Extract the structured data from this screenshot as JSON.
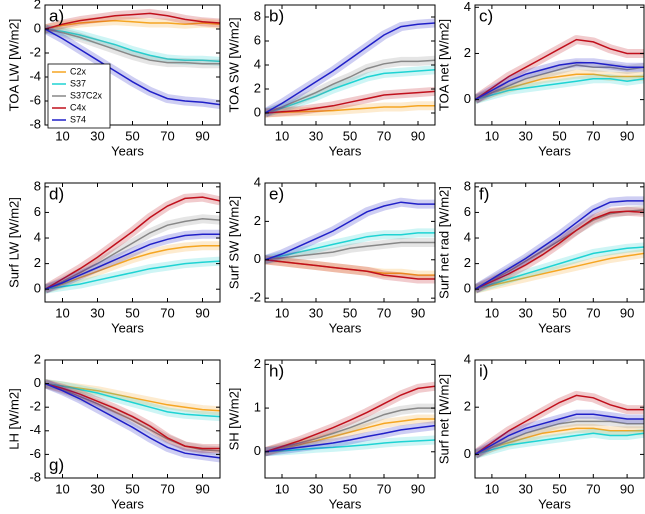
{
  "chart_data": [
    {
      "type": "line",
      "label": "a)",
      "label_position": "top-left",
      "ylabel": "TOA LW [W/m2]",
      "xlabel": "Years",
      "legend": "lower-left",
      "x": [
        0,
        10,
        20,
        30,
        40,
        50,
        60,
        70,
        80,
        90,
        100
      ],
      "xlim": [
        0,
        100
      ],
      "xticks": [
        10,
        30,
        50,
        70,
        90
      ],
      "ylim": [
        -8,
        2
      ],
      "yticks": [
        -8,
        -6,
        -4,
        -2,
        0,
        2
      ],
      "series": [
        {
          "name": "C2x",
          "color": "#f5a623",
          "values": [
            0,
            0.3,
            0.5,
            0.6,
            0.7,
            0.6,
            0.5,
            0.5,
            0.4,
            0.5,
            0.4
          ]
        },
        {
          "name": "S37",
          "color": "#1fd3d3",
          "values": [
            0,
            -0.2,
            -0.5,
            -0.9,
            -1.3,
            -1.8,
            -2.2,
            -2.5,
            -2.6,
            -2.6,
            -2.7
          ]
        },
        {
          "name": "S37C2x",
          "color": "#888888",
          "values": [
            0,
            -0.3,
            -0.7,
            -1.2,
            -1.7,
            -2.2,
            -2.6,
            -2.8,
            -2.8,
            -2.9,
            -2.9
          ]
        },
        {
          "name": "C4x",
          "color": "#c0101c",
          "values": [
            0,
            0.4,
            0.7,
            0.9,
            1.1,
            1.2,
            1.3,
            1.1,
            0.8,
            0.6,
            0.5
          ]
        },
        {
          "name": "S74",
          "color": "#2020c8",
          "values": [
            0,
            -0.8,
            -1.7,
            -2.6,
            -3.5,
            -4.4,
            -5.2,
            -5.8,
            -6.0,
            -6.1,
            -6.3
          ]
        }
      ]
    },
    {
      "type": "line",
      "label": "b)",
      "label_position": "top-left",
      "ylabel": "TOA SW [W/m2]",
      "xlabel": "Years",
      "x": [
        0,
        10,
        20,
        30,
        40,
        50,
        60,
        70,
        80,
        90,
        100
      ],
      "xlim": [
        0,
        100
      ],
      "xticks": [
        10,
        30,
        50,
        70,
        90
      ],
      "ylim": [
        -1,
        9
      ],
      "yticks": [
        0,
        2,
        4,
        6,
        8
      ],
      "series": [
        {
          "color": "#f5a623",
          "values": [
            0,
            0.05,
            0.1,
            0.15,
            0.2,
            0.3,
            0.4,
            0.5,
            0.5,
            0.6,
            0.6
          ]
        },
        {
          "color": "#1fd3d3",
          "values": [
            0,
            0.4,
            0.9,
            1.4,
            2.0,
            2.5,
            3.0,
            3.3,
            3.4,
            3.5,
            3.6
          ]
        },
        {
          "color": "#888888",
          "values": [
            0,
            0.5,
            1.1,
            1.7,
            2.4,
            3.0,
            3.7,
            4.1,
            4.3,
            4.3,
            4.4
          ]
        },
        {
          "color": "#c0101c",
          "values": [
            0,
            0.1,
            0.2,
            0.4,
            0.6,
            0.9,
            1.2,
            1.5,
            1.6,
            1.7,
            1.8
          ]
        },
        {
          "color": "#2020c8",
          "values": [
            0,
            0.8,
            1.7,
            2.6,
            3.5,
            4.5,
            5.5,
            6.5,
            7.2,
            7.4,
            7.5
          ]
        }
      ]
    },
    {
      "type": "line",
      "label": "c)",
      "label_position": "top-left",
      "ylabel": "TOA net [W/m2]",
      "xlabel": "Years",
      "x": [
        0,
        10,
        20,
        30,
        40,
        50,
        60,
        70,
        80,
        90,
        100
      ],
      "xlim": [
        0,
        100
      ],
      "xticks": [
        10,
        30,
        50,
        70,
        90
      ],
      "ylim": [
        -1.1,
        4.1
      ],
      "yticks": [
        0,
        2,
        4
      ],
      "series": [
        {
          "color": "#f5a623",
          "values": [
            0,
            0.3,
            0.5,
            0.7,
            0.9,
            1.0,
            1.1,
            1.1,
            1.0,
            1.0,
            1.0
          ]
        },
        {
          "color": "#1fd3d3",
          "values": [
            0,
            0.2,
            0.4,
            0.5,
            0.6,
            0.7,
            0.8,
            0.9,
            0.9,
            0.8,
            0.9
          ]
        },
        {
          "color": "#888888",
          "values": [
            0,
            0.3,
            0.6,
            0.9,
            1.1,
            1.3,
            1.5,
            1.4,
            1.4,
            1.3,
            1.4
          ]
        },
        {
          "color": "#c0101c",
          "values": [
            0,
            0.5,
            1.0,
            1.4,
            1.8,
            2.2,
            2.6,
            2.5,
            2.2,
            2.0,
            2.0
          ]
        },
        {
          "color": "#2020c8",
          "values": [
            0,
            0.4,
            0.8,
            1.1,
            1.3,
            1.5,
            1.6,
            1.6,
            1.5,
            1.4,
            1.4
          ]
        }
      ]
    },
    {
      "type": "line",
      "label": "d)",
      "label_position": "top-left",
      "ylabel": "Surf LW [W/m2]",
      "xlabel": "Years",
      "x": [
        0,
        10,
        20,
        30,
        40,
        50,
        60,
        70,
        80,
        90,
        100
      ],
      "xlim": [
        0,
        100
      ],
      "xticks": [
        10,
        30,
        50,
        70,
        90
      ],
      "ylim": [
        -1,
        8.3
      ],
      "yticks": [
        0,
        2,
        4,
        6,
        8
      ],
      "series": [
        {
          "color": "#f5a623",
          "values": [
            0,
            0.4,
            0.9,
            1.4,
            1.9,
            2.4,
            2.8,
            3.1,
            3.3,
            3.4,
            3.4
          ]
        },
        {
          "color": "#1fd3d3",
          "values": [
            0,
            0.2,
            0.4,
            0.7,
            1.0,
            1.3,
            1.6,
            1.8,
            2.0,
            2.1,
            2.2
          ]
        },
        {
          "color": "#888888",
          "values": [
            0,
            0.6,
            1.3,
            2.0,
            2.8,
            3.6,
            4.4,
            5.0,
            5.3,
            5.5,
            5.4
          ]
        },
        {
          "color": "#c0101c",
          "values": [
            0,
            0.8,
            1.6,
            2.5,
            3.5,
            4.5,
            5.6,
            6.5,
            7.1,
            7.2,
            6.9
          ]
        },
        {
          "color": "#2020c8",
          "values": [
            0,
            0.5,
            1.1,
            1.7,
            2.3,
            2.9,
            3.5,
            3.9,
            4.2,
            4.3,
            4.3
          ]
        }
      ]
    },
    {
      "type": "line",
      "label": "e)",
      "label_position": "top-left",
      "ylabel": "Surf SW [W/m2]",
      "xlabel": "Years",
      "x": [
        0,
        10,
        20,
        30,
        40,
        50,
        60,
        70,
        80,
        90,
        100
      ],
      "xlim": [
        0,
        100
      ],
      "xticks": [
        10,
        30,
        50,
        70,
        90
      ],
      "ylim": [
        -2.2,
        4
      ],
      "yticks": [
        -2,
        0,
        2,
        4
      ],
      "series": [
        {
          "color": "#f5a623",
          "values": [
            0,
            -0.1,
            -0.2,
            -0.3,
            -0.4,
            -0.5,
            -0.6,
            -0.7,
            -0.7,
            -0.8,
            -0.8
          ]
        },
        {
          "color": "#1fd3d3",
          "values": [
            0,
            0.2,
            0.4,
            0.6,
            0.8,
            1.0,
            1.2,
            1.3,
            1.3,
            1.4,
            1.4
          ]
        },
        {
          "color": "#888888",
          "values": [
            0,
            0.1,
            0.2,
            0.3,
            0.4,
            0.6,
            0.7,
            0.8,
            0.9,
            0.9,
            0.9
          ]
        },
        {
          "color": "#c0101c",
          "values": [
            0,
            -0.1,
            -0.2,
            -0.3,
            -0.4,
            -0.5,
            -0.6,
            -0.8,
            -0.9,
            -1.0,
            -1.0
          ]
        },
        {
          "color": "#2020c8",
          "values": [
            0,
            0.3,
            0.7,
            1.1,
            1.5,
            2.0,
            2.5,
            2.8,
            3.0,
            2.9,
            2.9
          ]
        }
      ]
    },
    {
      "type": "line",
      "label": "f)",
      "label_position": "top-left",
      "ylabel": "Surf net rad [W/m2]",
      "xlabel": "Years",
      "x": [
        0,
        10,
        20,
        30,
        40,
        50,
        60,
        70,
        80,
        90,
        100
      ],
      "xlim": [
        0,
        100
      ],
      "xticks": [
        10,
        30,
        50,
        70,
        90
      ],
      "ylim": [
        -1,
        8.3
      ],
      "yticks": [
        0,
        2,
        4,
        6,
        8
      ],
      "series": [
        {
          "color": "#f5a623",
          "values": [
            0,
            0.3,
            0.6,
            0.9,
            1.2,
            1.5,
            1.8,
            2.1,
            2.4,
            2.6,
            2.8
          ]
        },
        {
          "color": "#1fd3d3",
          "values": [
            0,
            0.4,
            0.8,
            1.2,
            1.6,
            2.0,
            2.4,
            2.8,
            3.0,
            3.2,
            3.3
          ]
        },
        {
          "color": "#888888",
          "values": [
            0,
            0.7,
            1.4,
            2.2,
            3.0,
            3.8,
            4.6,
            5.4,
            5.9,
            6.1,
            6.2
          ]
        },
        {
          "color": "#c0101c",
          "values": [
            0,
            0.6,
            1.2,
            1.9,
            2.7,
            3.6,
            4.6,
            5.5,
            6.0,
            6.1,
            6.0
          ]
        },
        {
          "color": "#2020c8",
          "values": [
            0,
            0.8,
            1.6,
            2.4,
            3.3,
            4.2,
            5.2,
            6.2,
            6.8,
            6.9,
            6.9
          ]
        }
      ]
    },
    {
      "type": "line",
      "label": "g)",
      "label_position": "bottom-left",
      "ylabel": "LH [W/m2]",
      "xlabel": "Years",
      "x": [
        0,
        10,
        20,
        30,
        40,
        50,
        60,
        70,
        80,
        90,
        100
      ],
      "xlim": [
        0,
        100
      ],
      "xticks": [
        10,
        30,
        50,
        70,
        90
      ],
      "ylim": [
        -8,
        2
      ],
      "yticks": [
        -8,
        -6,
        -4,
        -2,
        0,
        2
      ],
      "series": [
        {
          "color": "#f5a623",
          "values": [
            0,
            -0.2,
            -0.4,
            -0.6,
            -0.9,
            -1.2,
            -1.5,
            -1.8,
            -2.0,
            -2.2,
            -2.3
          ]
        },
        {
          "color": "#1fd3d3",
          "values": [
            0,
            -0.2,
            -0.5,
            -0.8,
            -1.2,
            -1.6,
            -2.0,
            -2.4,
            -2.6,
            -2.7,
            -2.8
          ]
        },
        {
          "color": "#888888",
          "values": [
            0,
            -0.5,
            -1.1,
            -1.7,
            -2.4,
            -3.1,
            -3.9,
            -4.7,
            -5.3,
            -5.6,
            -5.7
          ]
        },
        {
          "color": "#c0101c",
          "values": [
            0,
            -0.4,
            -0.9,
            -1.5,
            -2.1,
            -2.8,
            -3.6,
            -4.6,
            -5.3,
            -5.5,
            -5.5
          ]
        },
        {
          "color": "#2020c8",
          "values": [
            0,
            -0.6,
            -1.3,
            -2.1,
            -2.9,
            -3.7,
            -4.6,
            -5.4,
            -5.9,
            -6.1,
            -6.3
          ]
        }
      ]
    },
    {
      "type": "line",
      "label": "h)",
      "label_position": "top-left",
      "ylabel": "SH [W/m2]",
      "xlabel": "Years",
      "x": [
        0,
        10,
        20,
        30,
        40,
        50,
        60,
        70,
        80,
        90,
        100
      ],
      "xlim": [
        0,
        100
      ],
      "xticks": [
        10,
        30,
        50,
        70,
        90
      ],
      "ylim": [
        -0.6,
        2.1
      ],
      "yticks": [
        0,
        1,
        2
      ],
      "series": [
        {
          "color": "#f5a623",
          "values": [
            0,
            0.08,
            0.16,
            0.25,
            0.35,
            0.45,
            0.55,
            0.65,
            0.7,
            0.75,
            0.75
          ]
        },
        {
          "color": "#1fd3d3",
          "values": [
            0,
            0.02,
            0.05,
            0.08,
            0.1,
            0.13,
            0.16,
            0.2,
            0.23,
            0.25,
            0.27
          ]
        },
        {
          "color": "#888888",
          "values": [
            0,
            0.1,
            0.2,
            0.3,
            0.42,
            0.55,
            0.7,
            0.85,
            0.95,
            1.0,
            1.0
          ]
        },
        {
          "color": "#c0101c",
          "values": [
            0,
            0.12,
            0.25,
            0.4,
            0.55,
            0.72,
            0.9,
            1.1,
            1.3,
            1.45,
            1.5
          ]
        },
        {
          "color": "#2020c8",
          "values": [
            0,
            0.05,
            0.1,
            0.15,
            0.2,
            0.27,
            0.35,
            0.42,
            0.5,
            0.55,
            0.6
          ]
        }
      ]
    },
    {
      "type": "line",
      "label": "i)",
      "label_position": "top-left",
      "ylabel": "Surf net [W/m2]",
      "xlabel": "Years",
      "x": [
        0,
        10,
        20,
        30,
        40,
        50,
        60,
        70,
        80,
        90,
        100
      ],
      "xlim": [
        0,
        100
      ],
      "xticks": [
        10,
        30,
        50,
        70,
        90
      ],
      "ylim": [
        -1,
        4
      ],
      "yticks": [
        0,
        2,
        4
      ],
      "series": [
        {
          "color": "#f5a623",
          "values": [
            0,
            0.3,
            0.5,
            0.7,
            0.9,
            1.0,
            1.1,
            1.1,
            1.0,
            1.0,
            1.0
          ]
        },
        {
          "color": "#1fd3d3",
          "values": [
            0,
            0.2,
            0.4,
            0.5,
            0.6,
            0.7,
            0.8,
            0.9,
            0.8,
            0.8,
            0.9
          ]
        },
        {
          "color": "#888888",
          "values": [
            0,
            0.3,
            0.6,
            0.9,
            1.1,
            1.3,
            1.4,
            1.4,
            1.4,
            1.3,
            1.3
          ]
        },
        {
          "color": "#c0101c",
          "values": [
            0,
            0.5,
            1.0,
            1.4,
            1.8,
            2.2,
            2.5,
            2.4,
            2.1,
            1.9,
            1.9
          ]
        },
        {
          "color": "#2020c8",
          "values": [
            0,
            0.4,
            0.8,
            1.1,
            1.3,
            1.5,
            1.7,
            1.7,
            1.6,
            1.5,
            1.5
          ]
        }
      ]
    }
  ]
}
